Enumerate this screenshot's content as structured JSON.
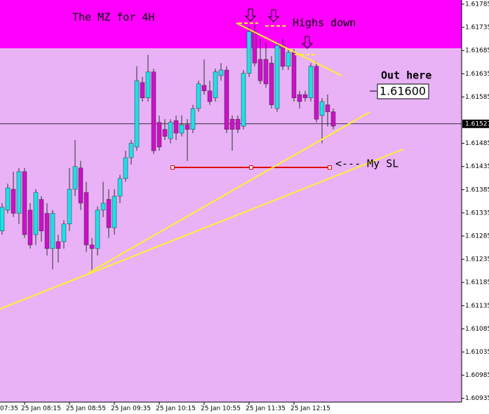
{
  "chart_data": {
    "type": "candlestick",
    "categories": [
      null,
      null,
      null,
      null,
      "25 Jan 08:15",
      null,
      null,
      null,
      null,
      null,
      null,
      null,
      "25 Jan 08:55",
      null,
      null,
      null,
      null,
      null,
      null,
      null,
      "25 Jan 09:35",
      null,
      null,
      null,
      null,
      null,
      null,
      null,
      "25 Jan 10:15",
      null,
      null,
      null,
      null,
      null,
      null,
      null,
      "25 Jan 10:55",
      null,
      null,
      null,
      null,
      null,
      null,
      null,
      "25 Jan 11:35",
      null,
      null,
      null,
      null,
      null,
      null,
      null,
      "25 Jan 12:15",
      null,
      null,
      null,
      null,
      null,
      null,
      null
    ],
    "partial_x_label": "07:35",
    "open": [
      1.61296,
      1.61341,
      1.61386,
      1.61334,
      1.61424,
      1.61341,
      1.61288,
      1.61364,
      1.61334,
      1.61258,
      1.61273,
      1.61273,
      1.61311,
      1.61386,
      1.61432,
      1.61379,
      1.61266,
      1.61258,
      1.61341,
      1.61364,
      1.61303,
      1.61371,
      1.61409,
      1.61454,
      1.61477,
      1.61616,
      1.61583,
      1.61639,
      1.6153,
      1.61515,
      1.61495,
      1.61534,
      1.61507,
      1.61525,
      1.61515,
      1.6156,
      1.6161,
      1.61598,
      1.61583,
      1.61631,
      1.61643,
      1.61537,
      1.61537,
      1.61522,
      1.61636,
      1.61726,
      1.61666,
      1.61666,
      1.61658,
      1.6156,
      1.61696,
      1.61651,
      1.61681,
      1.6159,
      1.6159,
      1.61583,
      1.61651,
      1.61545,
      1.61568,
      1.61553
    ],
    "high": [
      1.61356,
      1.61398,
      1.61424,
      1.61432,
      1.61432,
      1.61356,
      1.61386,
      1.61371,
      1.61356,
      1.61341,
      1.61288,
      1.61319,
      1.61432,
      1.61492,
      1.61447,
      1.61402,
      1.61281,
      1.61349,
      1.61402,
      1.61386,
      1.61386,
      1.61417,
      1.61469,
      1.61492,
      1.61651,
      1.61628,
      1.61676,
      1.61646,
      1.61545,
      1.61537,
      1.61537,
      1.61545,
      1.61545,
      1.61537,
      1.61568,
      1.6162,
      1.61666,
      1.6162,
      1.61646,
      1.61658,
      1.61651,
      1.61545,
      1.61545,
      1.61643,
      1.61737,
      1.61741,
      1.61711,
      1.61703,
      1.61673,
      1.61703,
      1.61711,
      1.61688,
      1.61688,
      1.61598,
      1.61598,
      1.61658,
      1.61661,
      1.61583,
      1.6159,
      1.6156
    ],
    "low": [
      1.61288,
      1.61334,
      1.61326,
      1.61311,
      1.61281,
      1.61258,
      1.61266,
      1.61273,
      1.61243,
      1.61213,
      1.61228,
      1.61258,
      1.61296,
      1.61371,
      1.61341,
      1.61251,
      1.61205,
      1.61243,
      1.61326,
      1.61281,
      1.61288,
      1.61356,
      1.61402,
      1.61439,
      1.61469,
      1.61575,
      1.61575,
      1.61462,
      1.61469,
      1.61492,
      1.61485,
      1.61492,
      1.615,
      1.61447,
      1.61507,
      1.61553,
      1.6159,
      1.61568,
      1.61575,
      1.6162,
      1.61507,
      1.61469,
      1.61507,
      1.61515,
      1.61628,
      1.61651,
      1.61613,
      1.61605,
      1.6156,
      1.61553,
      1.61643,
      1.61643,
      1.61575,
      1.6156,
      1.61575,
      1.61575,
      1.6153,
      1.61485,
      1.61522,
      1.61515
    ],
    "close": [
      1.61347,
      1.61389,
      1.61334,
      1.61424,
      1.61288,
      1.61266,
      1.61379,
      1.61296,
      1.61258,
      1.61334,
      1.61258,
      1.61311,
      1.61386,
      1.61435,
      1.61356,
      1.61266,
      1.61258,
      1.61341,
      1.61356,
      1.61303,
      1.61371,
      1.61409,
      1.61454,
      1.61485,
      1.6162,
      1.61583,
      1.61639,
      1.61469,
      1.61477,
      1.615,
      1.6153,
      1.61507,
      1.61525,
      1.61515,
      1.6156,
      1.61613,
      1.61598,
      1.61575,
      1.61639,
      1.61643,
      1.61515,
      1.61515,
      1.61515,
      1.61636,
      1.61726,
      1.61658,
      1.6162,
      1.61613,
      1.61568,
      1.61696,
      1.61651,
      1.61681,
      1.61583,
      1.61575,
      1.61583,
      1.61651,
      1.61537,
      1.61575,
      1.61553,
      1.61522
    ],
    "up_color": "#1ee0e8",
    "down_color": "#cc10c8",
    "wick_color": "#303030",
    "background": "#e9b2f7",
    "ylim": [
      1.60927,
      1.61794
    ],
    "yticks": [
      1.61785,
      1.61735,
      1.61685,
      1.61635,
      1.61585,
      1.61485,
      1.61435,
      1.61385,
      1.61335,
      1.61285,
      1.61235,
      1.61185,
      1.61135,
      1.61085,
      1.61035,
      1.60985,
      1.60935
    ],
    "current_price": 1.61527,
    "zone_low": 1.6169,
    "zone_color": "#ff00ff",
    "sl_level": 1.61433,
    "sl_color": "#e00000",
    "annotations": [
      {
        "text": "The MZ for 4H"
      },
      {
        "text": "Highs down"
      },
      {
        "text": "Out here"
      },
      {
        "text": "1.61600"
      },
      {
        "text": "<--- My SL"
      }
    ]
  }
}
